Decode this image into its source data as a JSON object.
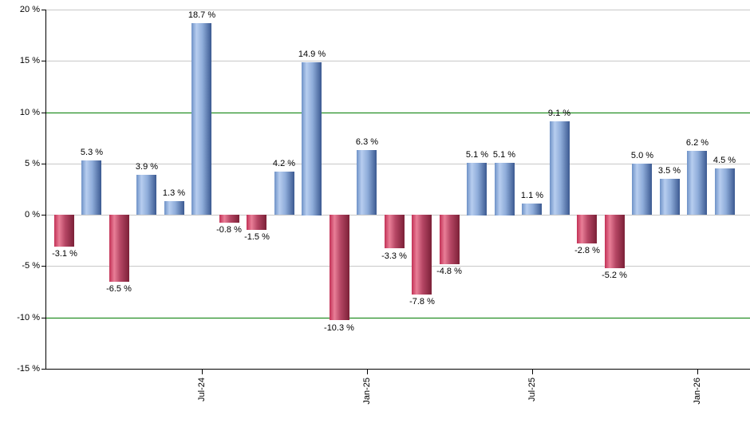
{
  "chart_data": {
    "type": "bar",
    "title": "",
    "xlabel": "",
    "ylabel": "",
    "ylim": [
      -15,
      20
    ],
    "grid": true,
    "legend": false,
    "y_ticks": [
      {
        "value": 20,
        "label": "20 %"
      },
      {
        "value": 15,
        "label": "15 %"
      },
      {
        "value": 10,
        "label": "10 %"
      },
      {
        "value": 5,
        "label": "5 %"
      },
      {
        "value": 0,
        "label": "0 %"
      },
      {
        "value": -5,
        "label": "-5 %"
      },
      {
        "value": -10,
        "label": "-10 %"
      },
      {
        "value": -15,
        "label": "-15 %"
      }
    ],
    "emphasized_gridlines": [
      10,
      -10
    ],
    "x_ticks": [
      {
        "bar_index": 5,
        "label": "Jul-24"
      },
      {
        "bar_index": 11,
        "label": "Jan-25"
      },
      {
        "bar_index": 17,
        "label": "Jul-25"
      },
      {
        "bar_index": 23,
        "label": "Jan-26"
      }
    ],
    "values": [
      -3.1,
      5.3,
      -6.5,
      3.9,
      1.3,
      18.7,
      -0.8,
      -1.5,
      4.2,
      14.9,
      -10.3,
      6.3,
      -3.3,
      -7.8,
      -4.8,
      5.1,
      5.1,
      1.1,
      9.1,
      -2.8,
      -5.2,
      5.0,
      3.5,
      6.2,
      4.5
    ],
    "labels": [
      "-3.1 %",
      "5.3 %",
      "-6.5 %",
      "3.9 %",
      "1.3 %",
      "18.7 %",
      "-0.8 %",
      "-1.5 %",
      "4.2 %",
      "14.9 %",
      "-10.3 %",
      "6.3 %",
      "-3.3 %",
      "-7.8 %",
      "-4.8 %",
      "5.1 %",
      "5.1 %",
      "1.1 %",
      "9.1 %",
      "-2.8 %",
      "-5.2 %",
      "5.0 %",
      "3.5 %",
      "6.2 %",
      "4.5 %"
    ],
    "colors": {
      "positive_bar_gradient": [
        "#6e92c7",
        "#b7cdef",
        "#8fadda",
        "#3b5991"
      ],
      "negative_bar_gradient": [
        "#c23156",
        "#e97e97",
        "#b54664",
        "#7b2037"
      ],
      "gridline": "#c8c8c8",
      "emphasis_gridline": "#007c00",
      "axis": "#000000",
      "label_text": "#000000",
      "background": "#ffffff"
    }
  }
}
